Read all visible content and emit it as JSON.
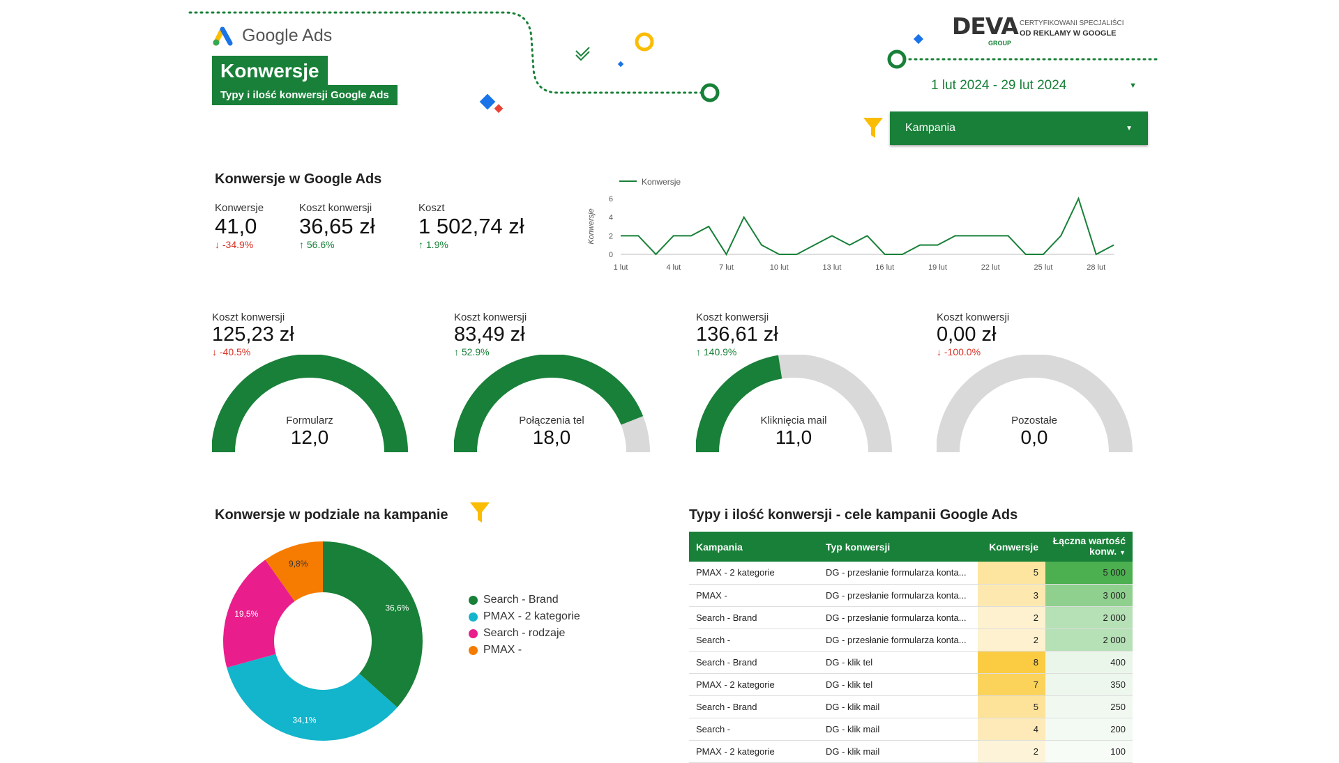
{
  "header": {
    "logo_text": "Google Ads",
    "title": "Konwersje",
    "subtitle": "Typy i ilość konwersji Google Ads",
    "brand_name": "DEVA",
    "brand_sub": "GROUP",
    "brand_tagline_1": "CERTYFIKOWANI SPECJALIŚCI",
    "brand_tagline_2": "OD REKLAMY W GOOGLE",
    "date_range": "1 lut 2024 - 29 lut 2024",
    "filter_label": "Kampania"
  },
  "overview": {
    "title": "Konwersje w Google Ads",
    "kpis": [
      {
        "label": "Konwersje",
        "value": "41,0",
        "delta": "-34.9%",
        "dir": "down"
      },
      {
        "label": "Koszt konwersji",
        "value": "36,65 zł",
        "delta": "56.6%",
        "dir": "up"
      },
      {
        "label": "Koszt",
        "value": "1 502,74 zł",
        "delta": "1.9%",
        "dir": "up"
      }
    ]
  },
  "chart_data": [
    {
      "type": "line",
      "title": "",
      "legend": [
        "Konwersje"
      ],
      "ylabel": "Konwersje",
      "xlabel": "",
      "ylim": [
        0,
        6
      ],
      "yticks": [
        "0",
        "2",
        "4",
        "6"
      ],
      "xticks": [
        "1 lut",
        "4 lut",
        "7 lut",
        "10 lut",
        "13 lut",
        "16 lut",
        "19 lut",
        "22 lut",
        "25 lut",
        "28 lut"
      ],
      "x": [
        1,
        2,
        3,
        4,
        5,
        6,
        7,
        8,
        9,
        10,
        11,
        12,
        13,
        14,
        15,
        16,
        17,
        18,
        19,
        20,
        21,
        22,
        23,
        24,
        25,
        26,
        27,
        28,
        29
      ],
      "series": [
        {
          "name": "Konwersje",
          "values": [
            2,
            2,
            0,
            2,
            2,
            3,
            0,
            4,
            1,
            0,
            0,
            1,
            2,
            1,
            2,
            0,
            0,
            1,
            1,
            2,
            2,
            2,
            2,
            0,
            0,
            2,
            6,
            0,
            1
          ]
        }
      ]
    },
    {
      "type": "pie",
      "title": "Konwersje w podziale na kampanie",
      "categories": [
        "Search - Brand",
        "PMAX - 2 kategorie",
        "Search - rodzaje",
        "PMAX -"
      ],
      "values": [
        36.6,
        34.1,
        19.5,
        9.8
      ],
      "labels": [
        "36,6%",
        "34,1%",
        "19,5%",
        "9,8%"
      ]
    }
  ],
  "gauges": [
    {
      "kpi_label": "Koszt konwersji",
      "kpi_value": "125,23 zł",
      "delta": "-40.5%",
      "dir": "down",
      "name": "Formularz",
      "value": "12,0",
      "fill": 1.0
    },
    {
      "kpi_label": "Koszt konwersji",
      "kpi_value": "83,49 zł",
      "delta": "52.9%",
      "dir": "up",
      "name": "Połączenia tel",
      "value": "18,0",
      "fill": 0.88
    },
    {
      "kpi_label": "Koszt konwersji",
      "kpi_value": "136,61 zł",
      "delta": "140.9%",
      "dir": "up",
      "name": "Kliknięcia mail",
      "value": "11,0",
      "fill": 0.45
    },
    {
      "kpi_label": "Koszt konwersji",
      "kpi_value": "0,00 zł",
      "delta": "-100.0%",
      "dir": "down",
      "name": "Pozostałe",
      "value": "0,0",
      "fill": 0
    }
  ],
  "campaigns": {
    "title": "Konwersje w podziale na kampanie",
    "legend": [
      {
        "label": "Search - Brand",
        "color": "#188038"
      },
      {
        "label": "PMAX - 2 kategorie",
        "color": "#12b5cb"
      },
      {
        "label": "Search - rodzaje",
        "color": "#e91e8c"
      },
      {
        "label": "PMAX -",
        "color": "#f57c00"
      }
    ]
  },
  "table": {
    "title": "Typy i ilość konwersji - cele kampanii Google Ads",
    "headers": [
      "Kampania",
      "Typ konwersji",
      "Konwersje",
      "Łączna wartość konw."
    ],
    "rows": [
      {
        "campaign": "PMAX - 2 kategorie",
        "type": "DG - przesłanie formularza konta...",
        "conv": "5",
        "value": "5 000"
      },
      {
        "campaign": "PMAX -",
        "type": "DG - przesłanie formularza konta...",
        "conv": "3",
        "value": "3 000"
      },
      {
        "campaign": "Search - Brand",
        "type": "DG - przesłanie formularza konta...",
        "conv": "2",
        "value": "2 000"
      },
      {
        "campaign": "Search -",
        "type": "DG - przesłanie formularza konta...",
        "conv": "2",
        "value": "2 000"
      },
      {
        "campaign": "Search - Brand",
        "type": "DG - klik tel",
        "conv": "8",
        "value": "400"
      },
      {
        "campaign": "PMAX - 2 kategorie",
        "type": "DG - klik tel",
        "conv": "7",
        "value": "350"
      },
      {
        "campaign": "Search - Brand",
        "type": "DG - klik mail",
        "conv": "5",
        "value": "250"
      },
      {
        "campaign": "Search -",
        "type": "DG - klik mail",
        "conv": "4",
        "value": "200"
      },
      {
        "campaign": "PMAX - 2 kategorie",
        "type": "DG - klik mail",
        "conv": "2",
        "value": "100"
      }
    ]
  },
  "colors": {
    "accent": "#188038",
    "gauge_bg": "#d9d9d9",
    "down": "#d93025",
    "up": "#188038"
  }
}
